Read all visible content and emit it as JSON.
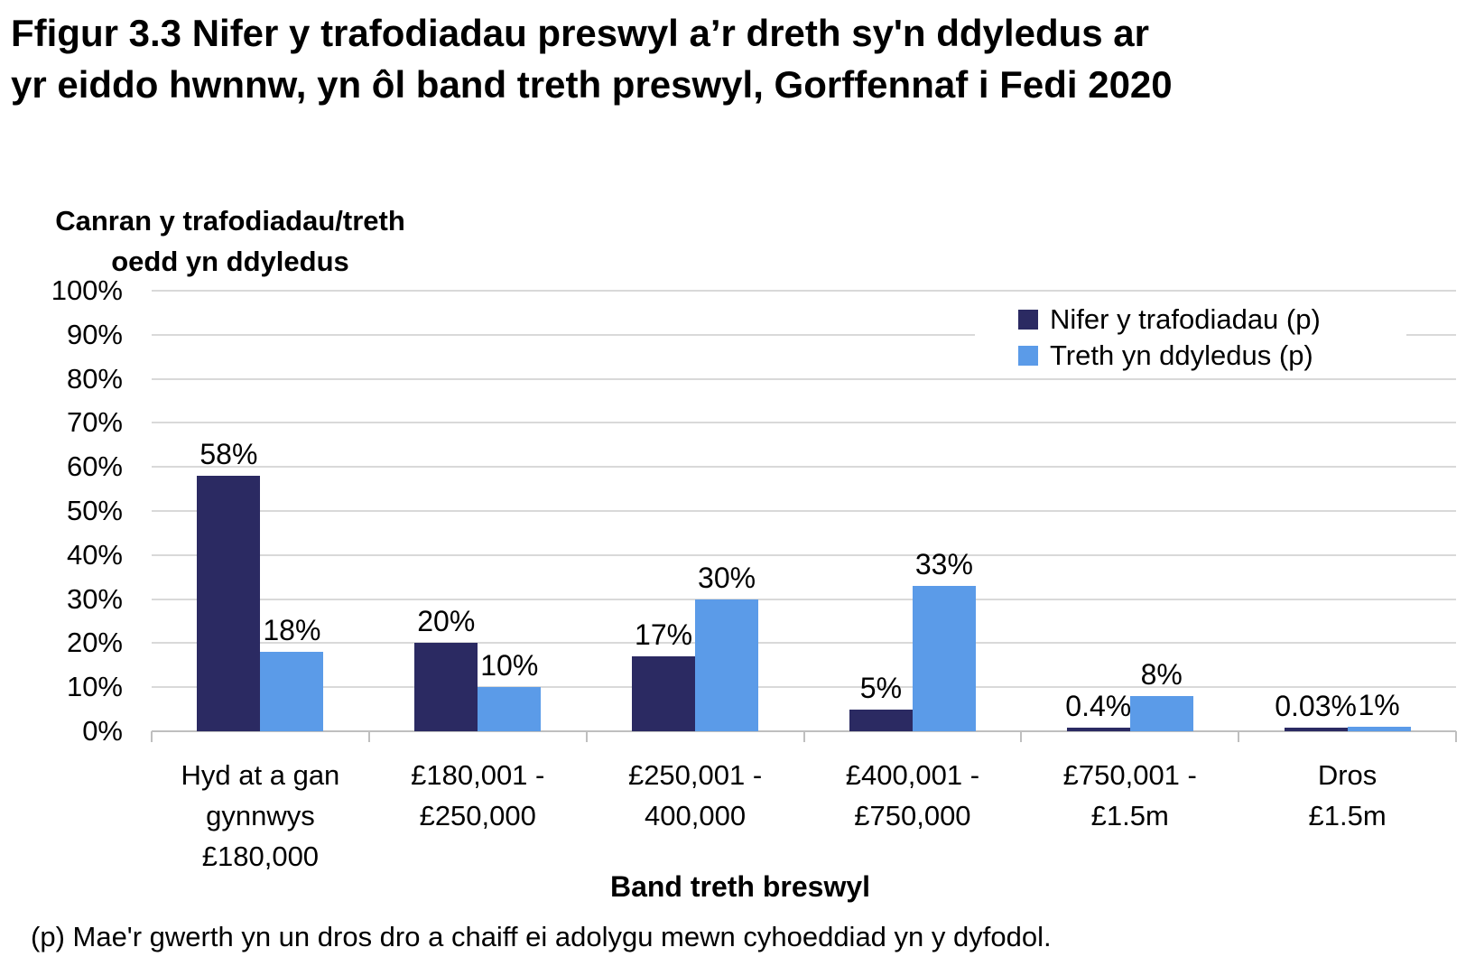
{
  "figure": {
    "title_lines": [
      "Ffigur 3.3  Nifer y trafodiadau preswyl a’r dreth sy'n ddyledus ar",
      "yr eiddo hwnnw, yn ôl band treth preswyl, Gorffennaf i Fedi 2020"
    ],
    "footnote": "(p) Mae'r gwerth yn un dros dro a chaiff ei adolygu mewn cyhoeddiad yn y dyfodol."
  },
  "chart_data": {
    "type": "bar",
    "title": "Ffigur 3.3  Nifer y trafodiadau preswyl a’r dreth sy'n ddyledus ar yr eiddo hwnnw, yn ôl band treth preswyl, Gorffennaf i Fedi 2020",
    "y_axis_title_lines": [
      "Canran y trafodiadau/treth",
      "oedd yn ddyledus"
    ],
    "x_axis_title": "Band treth breswyl",
    "categories": [
      "Hyd at a gan gynnwys £180,000",
      "£180,001 - £250,000",
      "£250,001 - 400,000",
      "£400,001 - £750,000",
      "£750,001 - £1.5m",
      "Dros £1.5m"
    ],
    "categories_lines": [
      [
        "Hyd at a gan",
        "gynnwys",
        "£180,000"
      ],
      [
        "£180,001 -",
        "£250,000"
      ],
      [
        "£250,001 -",
        "400,000"
      ],
      [
        "£400,001 -",
        "£750,000"
      ],
      [
        "£750,001 -",
        "£1.5m"
      ],
      [
        "Dros",
        "£1.5m"
      ]
    ],
    "series": [
      {
        "name": "Nifer y trafodiadau (p)",
        "color": "#2b2a62",
        "values": [
          58,
          20,
          17,
          5,
          0.4,
          0.03
        ],
        "labels": [
          "58%",
          "20%",
          "17%",
          "5%",
          "0.4%",
          "0.03%"
        ]
      },
      {
        "name": "Treth yn ddyledus (p)",
        "color": "#5b9be8",
        "values": [
          18,
          10,
          30,
          33,
          8,
          1
        ],
        "labels": [
          "18%",
          "10%",
          "30%",
          "33%",
          "8%",
          "1%"
        ]
      }
    ],
    "y_ticks": [
      "0%",
      "10%",
      "20%",
      "30%",
      "40%",
      "50%",
      "60%",
      "70%",
      "80%",
      "90%",
      "100%"
    ],
    "ylim": [
      0,
      100
    ],
    "grid": "horizontal",
    "legend_position": "top-right",
    "gridline_color": "#d9d9d9",
    "axis_color": "#bfbfbf"
  }
}
